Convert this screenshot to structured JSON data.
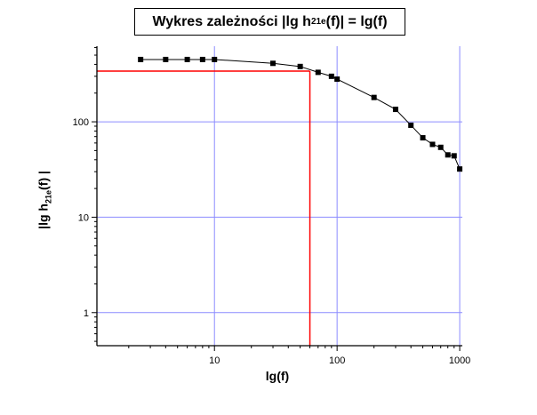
{
  "chart_data": {
    "type": "scatter",
    "title": {
      "prefix": "Wykres zależności |lg h",
      "subscript": "21e",
      "suffix": "(f)| = lg(f)"
    },
    "xlabel": "lg(f)",
    "ylabel": {
      "prefix": "|lg h",
      "subscript": "21e",
      "suffix": "(f) |"
    },
    "x_scale": "log",
    "y_scale": "log",
    "xlim": [
      1.1,
      1050
    ],
    "ylim": [
      0.45,
      620
    ],
    "x_ticks": [
      10,
      100,
      1000
    ],
    "x_tick_labels": [
      "10",
      "100",
      "1000"
    ],
    "y_ticks": [
      1,
      10,
      100
    ],
    "y_tick_labels": [
      "1",
      "10",
      "100"
    ],
    "grid": true,
    "grid_color": "#8c8cff",
    "marker_color": "#000000",
    "line_color": "#000000",
    "reference_color": "#ff0000",
    "series": [
      {
        "x": [
          2.5,
          4,
          6,
          8,
          10,
          30,
          50,
          70,
          90,
          100,
          200,
          300,
          400,
          500,
          600,
          700,
          800,
          900,
          1000
        ],
        "y": [
          450,
          450,
          450,
          450,
          450,
          410,
          380,
          330,
          300,
          280,
          180,
          135,
          92,
          68,
          58,
          54,
          45,
          44,
          32
        ]
      }
    ],
    "reference_lines": {
      "horizontal_y": 340,
      "vertical_x": 60
    }
  }
}
